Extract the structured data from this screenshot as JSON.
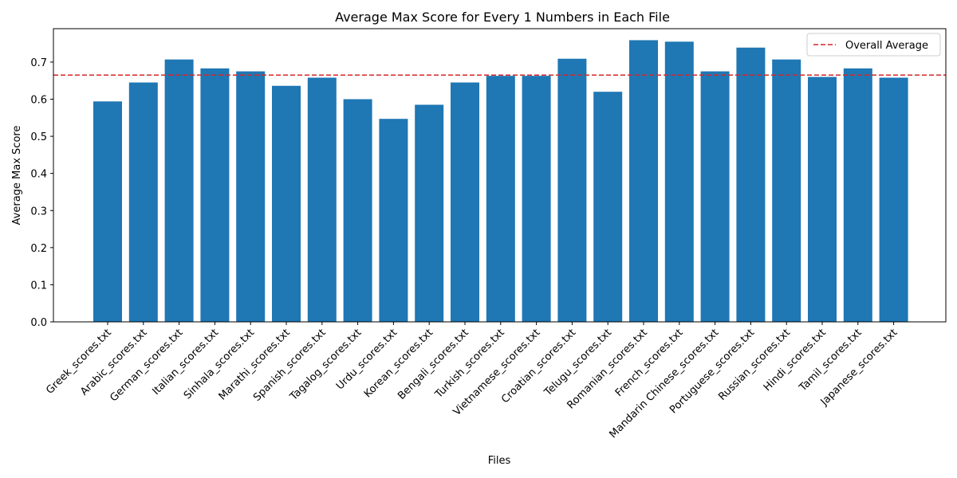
{
  "chart_data": {
    "type": "bar",
    "title": "Average Max Score for Every 1 Numbers in Each File",
    "xlabel": "Files",
    "ylabel": "Average Max Score",
    "categories": [
      "Greek_scores.txt",
      "Arabic_scores.txt",
      "German_scores.txt",
      "Italian_scores.txt",
      "Sinhala_scores.txt",
      "Marathi_scores.txt",
      "Spanish_scores.txt",
      "Tagalog_scores.txt",
      "Urdu_scores.txt",
      "Korean_scores.txt",
      "Bengali_scores.txt",
      "Turkish_scores.txt",
      "Vietnamese_scores.txt",
      "Croatian_scores.txt",
      "Telugu_scores.txt",
      "Romanian_scores.txt",
      "French_scores.txt",
      "Mandarin Chinese_scores.txt",
      "Portuguese_scores.txt",
      "Russian_scores.txt",
      "Hindi_scores.txt",
      "Tamil_scores.txt",
      "Japanese_scores.txt"
    ],
    "values": [
      0.594,
      0.645,
      0.707,
      0.683,
      0.675,
      0.636,
      0.658,
      0.6,
      0.547,
      0.585,
      0.645,
      0.663,
      0.663,
      0.709,
      0.62,
      0.759,
      0.755,
      0.675,
      0.739,
      0.707,
      0.66,
      0.683,
      0.658
    ],
    "ylim": [
      0,
      0.79
    ],
    "yticks": [
      "0.0",
      "0.1",
      "0.2",
      "0.3",
      "0.4",
      "0.5",
      "0.6",
      "0.7"
    ],
    "bar_color": "#1f77b4",
    "reference_line": {
      "label": "Overall Average",
      "value": 0.665,
      "color": "#d62728",
      "style": "dashed"
    },
    "legend": {
      "position": "top-right",
      "entries": [
        "Overall Average"
      ]
    },
    "grid": false
  }
}
